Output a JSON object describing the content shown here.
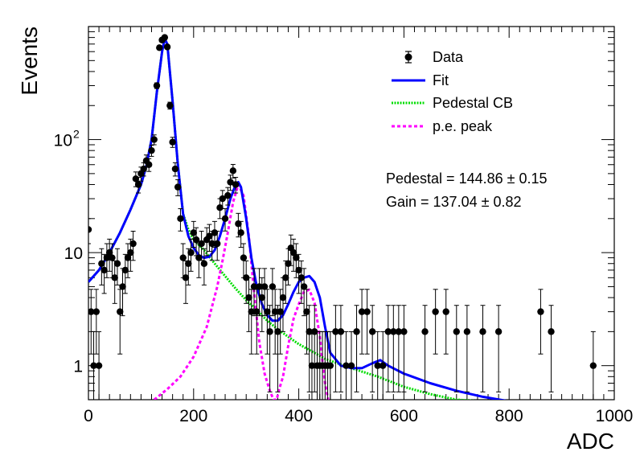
{
  "chart_data": {
    "type": "scatter",
    "title": "",
    "xlabel": "ADC",
    "ylabel": "Events",
    "xlim": [
      0,
      1000
    ],
    "ylim": [
      0.5,
      1000
    ],
    "yscale": "log",
    "grid": false,
    "x_ticks": [
      0,
      200,
      400,
      600,
      800,
      1000
    ],
    "x_tick_labels": [
      "0",
      "200",
      "400",
      "600",
      "800",
      "1000"
    ],
    "y_tick_labels": [
      {
        "value": 1,
        "label": "1"
      },
      {
        "value": 10,
        "label": "10"
      },
      {
        "value": 100,
        "label": "10",
        "sup": "2"
      }
    ],
    "legend": {
      "position": "top-right",
      "entries": [
        {
          "key": "data",
          "label": "Data"
        },
        {
          "key": "fit",
          "label": "Fit"
        },
        {
          "key": "pedestal",
          "label": "Pedestal CB"
        },
        {
          "key": "pe",
          "label": "p.e. peak"
        }
      ]
    },
    "annotations": [
      {
        "key": "pedestal",
        "text": "Pedestal = 144.86",
        "pm": "0.15"
      },
      {
        "key": "gain",
        "text": "Gain = 137.04",
        "pm": "0.82"
      }
    ],
    "colors": {
      "data": "#000000",
      "fit": "#0000ff",
      "pedestal": "#00dd00",
      "pe": "#ff00ff"
    },
    "series": [
      {
        "key": "data",
        "name": "Data",
        "x": [
          0,
          5,
          10,
          15,
          20,
          25,
          30,
          35,
          40,
          45,
          50,
          55,
          60,
          65,
          70,
          75,
          80,
          85,
          90,
          95,
          100,
          105,
          110,
          115,
          120,
          125,
          130,
          135,
          140,
          145,
          150,
          155,
          160,
          165,
          170,
          175,
          180,
          185,
          190,
          195,
          200,
          205,
          210,
          215,
          220,
          225,
          230,
          235,
          240,
          245,
          250,
          255,
          260,
          265,
          270,
          275,
          280,
          285,
          290,
          295,
          300,
          305,
          310,
          315,
          320,
          325,
          330,
          335,
          340,
          345,
          350,
          355,
          360,
          365,
          370,
          375,
          380,
          385,
          390,
          395,
          400,
          405,
          410,
          415,
          420,
          425,
          430,
          435,
          440,
          445,
          450,
          455,
          460,
          470,
          480,
          490,
          500,
          510,
          520,
          530,
          540,
          550,
          560,
          570,
          580,
          590,
          600,
          640,
          660,
          680,
          700,
          720,
          750,
          780,
          860,
          880,
          960
        ],
        "y": [
          16,
          3,
          1,
          3,
          1,
          8,
          7,
          9,
          10,
          9,
          6,
          8,
          3,
          5,
          7,
          9,
          10,
          12,
          45,
          40,
          50,
          55,
          65,
          60,
          80,
          100,
          300,
          650,
          760,
          800,
          660,
          200,
          95,
          55,
          38,
          20,
          9,
          6,
          8,
          10,
          15,
          13,
          9,
          12,
          8,
          13,
          14,
          12,
          15,
          12,
          25,
          30,
          20,
          32,
          42,
          53,
          40,
          18,
          15,
          9,
          6,
          4,
          3,
          5,
          3,
          5,
          4,
          5,
          3,
          2,
          5,
          3,
          2,
          3,
          4,
          6,
          8,
          11,
          10,
          9,
          7,
          6,
          5,
          3,
          2,
          1,
          2,
          1,
          1,
          1,
          1,
          1,
          1,
          2,
          2,
          1,
          1,
          2,
          3,
          3,
          2,
          1,
          1,
          2,
          2,
          2,
          2,
          2,
          3,
          3,
          2,
          2,
          2,
          2,
          3,
          2,
          1
        ]
      },
      {
        "key": "fit",
        "name": "Fit",
        "x": [
          0,
          20,
          40,
          60,
          80,
          100,
          110,
          120,
          130,
          140,
          145,
          150,
          160,
          170,
          180,
          190,
          200,
          210,
          220,
          230,
          240,
          250,
          260,
          270,
          280,
          285,
          290,
          300,
          310,
          320,
          330,
          340,
          350,
          360,
          370,
          380,
          390,
          400,
          410,
          420,
          430,
          440,
          450,
          460,
          480,
          500,
          520,
          540,
          555,
          570,
          600,
          650,
          700,
          750,
          800
        ],
        "y": [
          5.5,
          7,
          10,
          15,
          24,
          40,
          58,
          100,
          260,
          600,
          780,
          700,
          220,
          60,
          22,
          14,
          11,
          9.5,
          9,
          9.2,
          10.5,
          14,
          20,
          30,
          40,
          42,
          38,
          20,
          9,
          5,
          3.5,
          2.8,
          2.5,
          2.5,
          2.8,
          3.5,
          4.5,
          5.5,
          6,
          6.2,
          5.5,
          4,
          2.2,
          1.3,
          1.0,
          0.95,
          0.95,
          1.05,
          1.12,
          1.0,
          0.85,
          0.7,
          0.6,
          0.53,
          0.48
        ]
      },
      {
        "key": "pedestal",
        "name": "Pedestal CB",
        "x": [
          0,
          20,
          40,
          60,
          80,
          100,
          110,
          120,
          130,
          140,
          145,
          150,
          160,
          170,
          180,
          190,
          200,
          220,
          240,
          260,
          280,
          300,
          320,
          340,
          360,
          380,
          400,
          450,
          500,
          550,
          600,
          650,
          700,
          750
        ],
        "y": [
          5.5,
          7,
          10,
          15,
          24,
          40,
          58,
          100,
          260,
          600,
          780,
          700,
          220,
          60,
          22,
          16,
          13,
          10.5,
          8,
          6.2,
          4.8,
          3.8,
          3.1,
          2.5,
          2.1,
          1.8,
          1.55,
          1.15,
          0.95,
          0.8,
          0.65,
          0.56,
          0.5,
          0.48
        ]
      },
      {
        "key": "pe",
        "name": "p.e. peak",
        "x": [
          125,
          150,
          175,
          200,
          225,
          245,
          255,
          265,
          275,
          285,
          295,
          305,
          315,
          325,
          335,
          345,
          352,
          358,
          362,
          370,
          380,
          390,
          400,
          410,
          420,
          430,
          440,
          445,
          450,
          456
        ],
        "y": [
          0.5,
          0.62,
          0.8,
          1.2,
          2.2,
          5,
          8.5,
          15,
          28,
          40,
          32,
          14,
          4.5,
          1.6,
          0.85,
          0.6,
          0.5,
          0.5,
          0.6,
          0.8,
          1.5,
          2.6,
          3.5,
          4.5,
          4.7,
          3.6,
          1.8,
          1.1,
          0.7,
          0.5
        ]
      }
    ]
  }
}
